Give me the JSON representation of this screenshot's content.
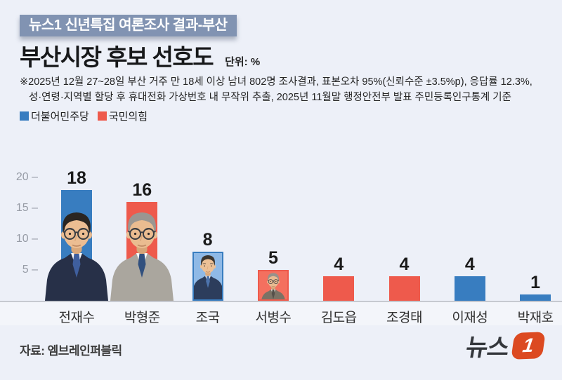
{
  "header": {
    "badge": "뉴스1 신년특집 여론조사 결과-부산",
    "badge_bg": "#8193b2",
    "title": "부산시장 후보 선호도",
    "unit_label": "단위: %",
    "note_line1": "※2025년 12월 27~28일 부산 거주 만 18세 이상 남녀 802명 조사결과, 표본오차 95%(신뢰수준 ±3.5%p), 응답률 12.3%,",
    "note_line2": "성·연령·지역별 할당 후 휴대전화 가상번호 내 무작위 추출,  2025년 11월말 행정안전부 발표 주민등록인구통계 기준"
  },
  "legend": {
    "items": [
      {
        "label": "더불어민주당",
        "color": "#387dc0"
      },
      {
        "label": "국민의힘",
        "color": "#ee5a4c"
      }
    ]
  },
  "chart_data": {
    "type": "bar",
    "title": "부산시장 후보 선호도",
    "unit": "%",
    "ylim": [
      0,
      20
    ],
    "yticks": [
      20,
      15,
      10,
      5
    ],
    "ytick_labels": [
      "20 –",
      "15 –",
      "10 –",
      "5 –"
    ],
    "grid": false,
    "legend_position": "top-left",
    "categories": [
      "전재수",
      "박형준",
      "조국",
      "서병수",
      "김도읍",
      "조경태",
      "이재성",
      "박재호"
    ],
    "values": [
      18,
      16,
      8,
      5,
      4,
      4,
      4,
      1
    ],
    "candidates": [
      {
        "name": "전재수",
        "value": 18,
        "party": "더불어민주당",
        "color": "#387dc0",
        "portrait": {
          "type": "cutout",
          "skin": "#ecbd92",
          "skin_shade": "#d9a87b",
          "hair": "#2a2521",
          "suit": "#273048",
          "shirt": "#f7f8fa",
          "tie": "#3f5f9e",
          "glasses": true
        }
      },
      {
        "name": "박형준",
        "value": 16,
        "party": "국민의힘",
        "color": "#ee5a4c",
        "portrait": {
          "type": "cutout",
          "skin": "#eabc90",
          "skin_shade": "#d6a578",
          "hair": "#9a9691",
          "suit": "#aaa69e",
          "shirt": "#f7f8fa",
          "tie": "#31507e",
          "glasses": true
        }
      },
      {
        "name": "조국",
        "value": 8,
        "party": "더불어민주당",
        "color": "#387dc0",
        "portrait": {
          "type": "framed",
          "bg": "#8fb9e6",
          "skin": "#ecc096",
          "skin_shade": "#d9a87b",
          "hair": "#3b352f",
          "suit": "#2c3d5c",
          "shirt": "#f7f8fa",
          "tie": "#4d74ad",
          "glasses": false
        }
      },
      {
        "name": "서병수",
        "value": 5,
        "party": "국민의힘",
        "color": "#ee5a4c",
        "portrait": {
          "type": "framed",
          "bg": "#f4705f",
          "skin": "#e9bc92",
          "skin_shade": "#d6a578",
          "hair": "#97928b",
          "suit": "#7b7265",
          "shirt": "#f7f8fa",
          "tie": "#55504a",
          "glasses": true
        }
      },
      {
        "name": "김도읍",
        "value": 4,
        "party": "국민의힘",
        "color": "#ee5a4c",
        "portrait": null
      },
      {
        "name": "조경태",
        "value": 4,
        "party": "국민의힘",
        "color": "#ee5a4c",
        "portrait": null
      },
      {
        "name": "이재성",
        "value": 4,
        "party": "더불어민주당",
        "color": "#387dc0",
        "portrait": null
      },
      {
        "name": "박재호",
        "value": 1,
        "party": "더불어민주당",
        "color": "#387dc0",
        "portrait": null
      }
    ]
  },
  "footer": {
    "source": "자료: 엠브레인퍼블릭",
    "logo": {
      "text": "뉴스",
      "badge": "1",
      "badge_color": "#dc4a21",
      "text_color": "#33363b"
    }
  }
}
